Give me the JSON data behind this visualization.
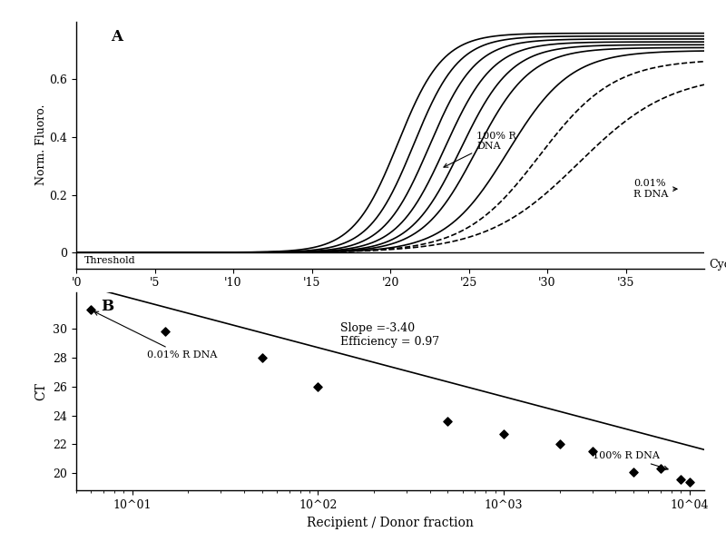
{
  "panel_A_label": "A",
  "panel_B_label": "B",
  "ylabel_A": "Norm. Fluoro.",
  "xlabel_A": "Cycle",
  "threshold_label": "Threshold",
  "label_100R": "100% R\nDNA",
  "label_001R": "0.01%\nR DNA",
  "annotation_slope": "Slope =-3.40\nEfficiency = 0.97",
  "label_001R_B": "0.01% R DNA",
  "label_100R_B": "100% R DNA",
  "ylabel_B": "CT",
  "xlabel_B": "Recipient / Donor fraction",
  "sigmoid_midpoints": [
    20.5,
    21.5,
    22.5,
    23.5,
    24.5,
    25.5,
    27.5,
    29.5,
    32.0
  ],
  "sigmoid_slopes": [
    0.7,
    0.7,
    0.68,
    0.65,
    0.62,
    0.58,
    0.5,
    0.42,
    0.34
  ],
  "sigmoid_max": [
    0.76,
    0.75,
    0.74,
    0.73,
    0.72,
    0.71,
    0.7,
    0.67,
    0.62
  ],
  "n_solid": 7,
  "scatter_x": [
    6,
    15,
    50,
    100,
    500,
    1000,
    2000,
    3000,
    5000,
    7000,
    9000,
    10000
  ],
  "scatter_y": [
    31.3,
    29.8,
    28.0,
    26.0,
    23.6,
    22.7,
    22.0,
    21.5,
    20.1,
    20.3,
    19.6,
    19.4
  ],
  "line_intercept": 35.5,
  "line_slope": -3.4,
  "bg_color": "#ffffff"
}
